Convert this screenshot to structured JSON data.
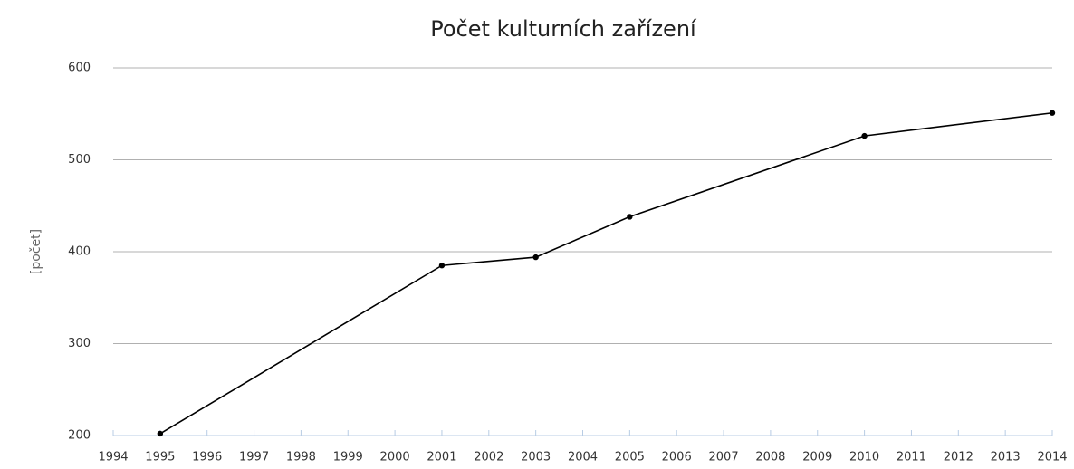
{
  "chart_data": {
    "type": "line",
    "title": "Počet kulturních zařízení",
    "y_label": "[počet]",
    "x": [
      1995,
      2001,
      2003,
      2005,
      2010,
      2014
    ],
    "values": [
      202,
      385,
      394,
      438,
      526,
      551
    ],
    "color": "#000000",
    "xlim": [
      1994,
      2014
    ],
    "xticks": [
      1994,
      1995,
      1996,
      1997,
      1998,
      1999,
      2000,
      2001,
      2002,
      2003,
      2004,
      2005,
      2006,
      2007,
      2008,
      2009,
      2010,
      2011,
      2012,
      2013,
      2014
    ],
    "ylim": [
      200,
      600
    ],
    "yticks": [
      200,
      300,
      400,
      500,
      600
    ],
    "grid": true
  }
}
